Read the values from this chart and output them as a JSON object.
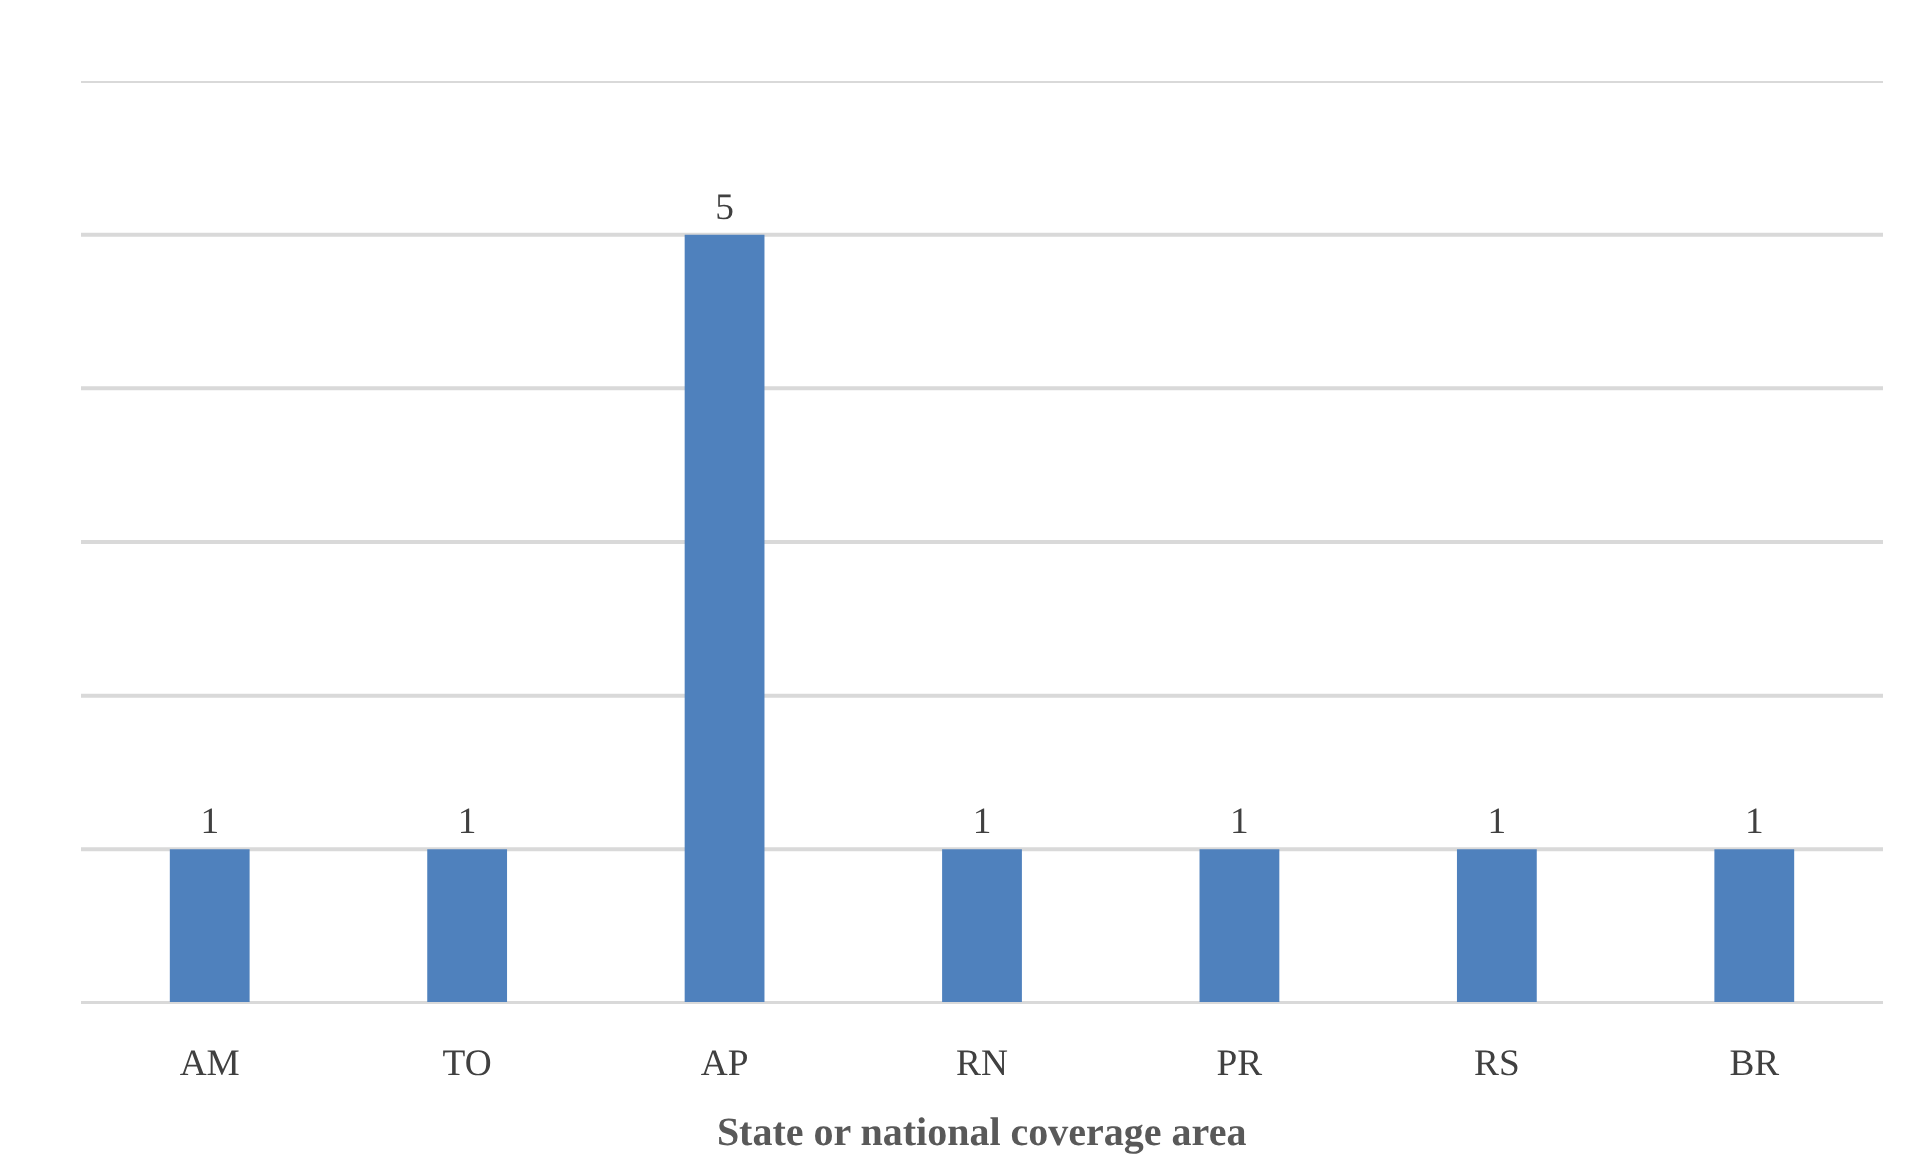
{
  "chart_data": {
    "type": "bar",
    "xlabel": "State or national coverage area",
    "categories": [
      "AM",
      "TO",
      "AP",
      "RN",
      "PR",
      "RS",
      "BR"
    ],
    "values": [
      1,
      1,
      5,
      1,
      1,
      1,
      1
    ],
    "color": "#4f81bd",
    "ylim": [
      0,
      6
    ],
    "yticks": [
      {
        "value": 0,
        "label": null
      },
      {
        "value": 1,
        "label": null
      },
      {
        "value": 2,
        "label": null
      },
      {
        "value": 3,
        "label": null
      },
      {
        "value": 4,
        "label": null
      },
      {
        "value": 5,
        "label": null
      },
      {
        "value": 6,
        "label": null
      }
    ],
    "tick_labels": "x",
    "grid": "y",
    "data_labels": true
  }
}
